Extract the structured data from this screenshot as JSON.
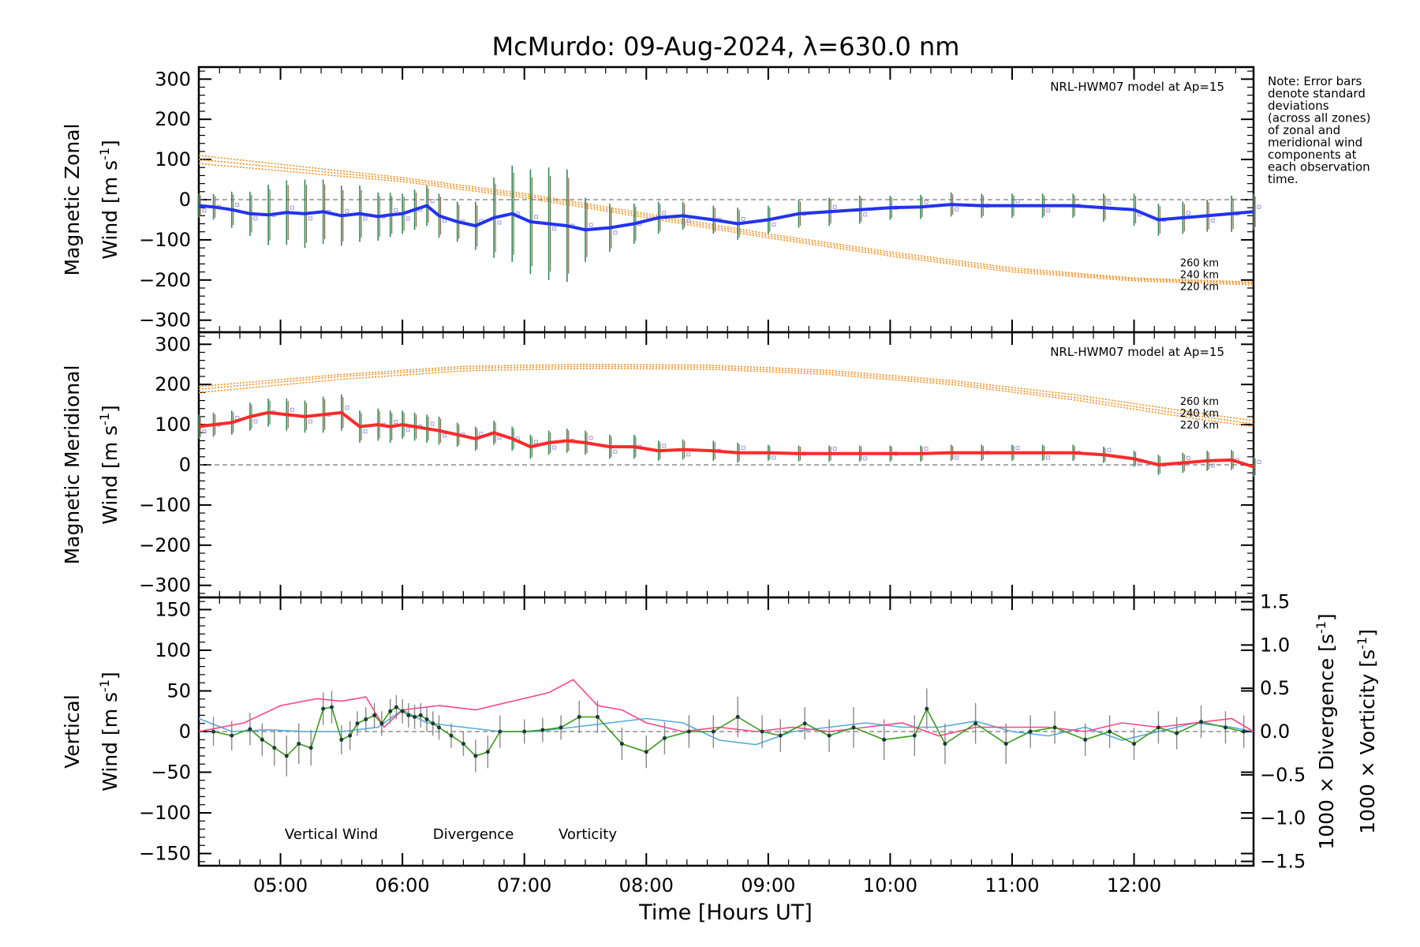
{
  "title": "McMurdo: 09-Aug-2024, λ=630.0 nm",
  "note": [
    "Note: Error bars",
    "denote standard",
    "deviations",
    "(across all zones)",
    "of zonal and",
    "meridional wind",
    "components at",
    "each observation",
    "time."
  ],
  "xlabel": "Time [Hours UT]",
  "x_ticks": [
    "05:00",
    "06:00",
    "07:00",
    "08:00",
    "09:00",
    "10:00",
    "11:00",
    "12:00"
  ],
  "x_range_hours": [
    4.33,
    12.98
  ],
  "colors": {
    "zonal": "#2233ee",
    "meridional": "#ff2a2a",
    "model": "#ff8c1a",
    "vertical": "#3a9a1a",
    "divergence": "#55aadd",
    "vorticity": "#ff4488",
    "errorbar_green": "#2e8b57",
    "errorbar_brown": "#8b6a4a",
    "zone_points": "#9999ee"
  },
  "chart_data": [
    {
      "type": "line",
      "panel": "zonal",
      "ylabel_line1": "Magnetic Zonal",
      "ylabel_line2_prefix": "Wind [m s",
      "ylabel_sup": "-1",
      "ylabel_suffix": "]",
      "ylim": [
        -330,
        330
      ],
      "yticks": [
        "−300",
        "−200",
        "−100",
        "0",
        "100",
        "200",
        "300"
      ],
      "ytick_values": [
        -300,
        -200,
        -100,
        0,
        100,
        200,
        300
      ],
      "model_label": "NRL-HWM07 model at Ap=15",
      "model_altitudes": [
        "260 km",
        "240 km",
        "220 km"
      ],
      "series": [
        {
          "name": "zonal wind",
          "x": [
            4.33,
            4.45,
            4.6,
            4.75,
            4.9,
            5.05,
            5.2,
            5.35,
            5.5,
            5.65,
            5.8,
            5.9,
            6.0,
            6.1,
            6.2,
            6.3,
            6.45,
            6.6,
            6.75,
            6.9,
            7.05,
            7.2,
            7.35,
            7.5,
            7.7,
            7.9,
            8.1,
            8.3,
            8.55,
            8.75,
            9.0,
            9.25,
            9.5,
            9.75,
            10.0,
            10.25,
            10.5,
            10.75,
            11.0,
            11.25,
            11.5,
            11.75,
            12.0,
            12.2,
            12.4,
            12.6,
            12.8,
            12.98
          ],
          "values": [
            -15,
            -18,
            -25,
            -35,
            -38,
            -32,
            -35,
            -30,
            -40,
            -35,
            -42,
            -38,
            -35,
            -25,
            -15,
            -40,
            -55,
            -65,
            -45,
            -35,
            -55,
            -60,
            -65,
            -75,
            -70,
            -60,
            -45,
            -40,
            -50,
            -60,
            -50,
            -35,
            -30,
            -25,
            -20,
            -18,
            -12,
            -15,
            -15,
            -15,
            -15,
            -20,
            -25,
            -50,
            -45,
            -40,
            -35,
            -30
          ],
          "errors": [
            30,
            32,
            45,
            55,
            75,
            80,
            85,
            80,
            75,
            70,
            60,
            55,
            50,
            50,
            50,
            55,
            50,
            60,
            100,
            120,
            130,
            140,
            140,
            80,
            60,
            50,
            40,
            35,
            35,
            40,
            35,
            35,
            35,
            35,
            30,
            30,
            30,
            30,
            30,
            30,
            30,
            35,
            40,
            40,
            40,
            40,
            45,
            45
          ]
        }
      ],
      "model_curves": [
        {
          "altitude": "260 km",
          "x": [
            4.33,
            6,
            7,
            8,
            9,
            10,
            11,
            12,
            12.98
          ],
          "values": [
            110,
            55,
            15,
            -35,
            -85,
            -130,
            -170,
            -195,
            -205
          ]
        },
        {
          "altitude": "240 km",
          "x": [
            4.33,
            6,
            7,
            8,
            9,
            10,
            11,
            12,
            12.98
          ],
          "values": [
            100,
            50,
            10,
            -40,
            -90,
            -135,
            -175,
            -198,
            -208
          ]
        },
        {
          "altitude": "220 km",
          "x": [
            4.33,
            6,
            7,
            8,
            9,
            10,
            11,
            12,
            12.98
          ],
          "values": [
            90,
            45,
            5,
            -45,
            -95,
            -140,
            -180,
            -202,
            -212
          ]
        }
      ]
    },
    {
      "type": "line",
      "panel": "meridional",
      "ylabel_line1": "Magnetic Meridional",
      "ylabel_line2_prefix": "Wind [m s",
      "ylabel_sup": "-1",
      "ylabel_suffix": "]",
      "ylim": [
        -330,
        330
      ],
      "yticks": [
        "−300",
        "−200",
        "−100",
        "0",
        "100",
        "200",
        "300"
      ],
      "ytick_values": [
        -300,
        -200,
        -100,
        0,
        100,
        200,
        300
      ],
      "model_label": "NRL-HWM07 model at Ap=15",
      "model_altitudes": [
        "260 km",
        "240 km",
        "220 km"
      ],
      "series": [
        {
          "name": "meridional wind",
          "x": [
            4.33,
            4.45,
            4.6,
            4.75,
            4.9,
            5.05,
            5.2,
            5.35,
            5.5,
            5.65,
            5.8,
            5.9,
            6.0,
            6.1,
            6.2,
            6.3,
            6.45,
            6.6,
            6.75,
            6.9,
            7.05,
            7.2,
            7.35,
            7.5,
            7.7,
            7.9,
            8.1,
            8.3,
            8.55,
            8.75,
            9.0,
            9.25,
            9.5,
            9.75,
            10.0,
            10.25,
            10.5,
            10.75,
            11.0,
            11.25,
            11.5,
            11.75,
            12.0,
            12.2,
            12.4,
            12.6,
            12.8,
            12.98
          ],
          "values": [
            95,
            100,
            105,
            120,
            130,
            125,
            120,
            125,
            130,
            95,
            100,
            95,
            100,
            95,
            90,
            85,
            75,
            65,
            80,
            65,
            45,
            55,
            60,
            55,
            45,
            45,
            35,
            38,
            35,
            30,
            30,
            28,
            28,
            28,
            28,
            28,
            30,
            30,
            30,
            30,
            30,
            25,
            15,
            0,
            5,
            10,
            12,
            -5
          ],
          "errors": [
            30,
            30,
            30,
            35,
            35,
            40,
            40,
            45,
            45,
            40,
            40,
            40,
            35,
            35,
            35,
            35,
            30,
            30,
            30,
            30,
            30,
            30,
            30,
            30,
            30,
            30,
            25,
            25,
            25,
            25,
            20,
            20,
            20,
            20,
            20,
            20,
            20,
            20,
            20,
            20,
            20,
            20,
            20,
            25,
            25,
            25,
            25,
            25
          ]
        }
      ],
      "model_curves": [
        {
          "altitude": "260 km",
          "x": [
            4.33,
            5.5,
            6.5,
            7.5,
            8.5,
            9.5,
            10.5,
            11.5,
            12.5,
            12.98
          ],
          "values": [
            195,
            225,
            245,
            250,
            248,
            235,
            210,
            175,
            130,
            110
          ]
        },
        {
          "altitude": "240 km",
          "x": [
            4.33,
            5.5,
            6.5,
            7.5,
            8.5,
            9.5,
            10.5,
            11.5,
            12.5,
            12.98
          ],
          "values": [
            188,
            220,
            240,
            245,
            243,
            230,
            205,
            168,
            122,
            102
          ]
        },
        {
          "altitude": "220 km",
          "x": [
            4.33,
            5.5,
            6.5,
            7.5,
            8.5,
            9.5,
            10.5,
            11.5,
            12.5,
            12.98
          ],
          "values": [
            180,
            213,
            234,
            240,
            238,
            225,
            200,
            162,
            115,
            95
          ]
        }
      ]
    },
    {
      "type": "line",
      "panel": "vertical",
      "ylabel_line1": "Vertical",
      "ylabel_line2_prefix": "Wind [m s",
      "ylabel_sup": "-1",
      "ylabel_suffix": "]",
      "ylim": [
        -165,
        165
      ],
      "yticks": [
        "−150",
        "−100",
        "−50",
        "0",
        "50",
        "100",
        "150"
      ],
      "ytick_values": [
        -150,
        -100,
        -50,
        0,
        50,
        100,
        150
      ],
      "y2lim": [
        -1.55,
        1.55
      ],
      "y2ticks": [
        "−1.5",
        "−1.0",
        "−0.5",
        "0.0",
        "0.5",
        "1.0",
        "1.5"
      ],
      "y2tick_values": [
        -1.5,
        -1.0,
        -0.5,
        0.0,
        0.5,
        1.0,
        1.5
      ],
      "y2label_div": "1000 × Divergence [s",
      "y2label_vor": "1000 × Vorticity [s",
      "legend": [
        "Vertical Wind",
        "Divergence",
        "Vorticity"
      ],
      "series": [
        {
          "name": "Vertical Wind",
          "x": [
            4.45,
            4.6,
            4.75,
            4.85,
            4.95,
            5.05,
            5.15,
            5.25,
            5.35,
            5.42,
            5.5,
            5.57,
            5.63,
            5.7,
            5.77,
            5.83,
            5.9,
            5.95,
            6.0,
            6.05,
            6.1,
            6.15,
            6.2,
            6.25,
            6.3,
            6.4,
            6.5,
            6.6,
            6.7,
            6.8,
            7.0,
            7.15,
            7.3,
            7.45,
            7.6,
            7.8,
            8.0,
            8.15,
            8.35,
            8.55,
            8.75,
            8.95,
            9.1,
            9.3,
            9.5,
            9.7,
            9.95,
            10.2,
            10.3,
            10.45,
            10.7,
            10.95,
            11.15,
            11.35,
            11.6,
            11.8,
            12.0,
            12.2,
            12.35,
            12.55,
            12.75,
            12.9
          ],
          "values": [
            0,
            -5,
            3,
            -10,
            -20,
            -30,
            -15,
            -20,
            28,
            30,
            -10,
            -5,
            10,
            15,
            20,
            10,
            25,
            30,
            25,
            20,
            18,
            20,
            15,
            10,
            5,
            -5,
            -15,
            -30,
            -25,
            0,
            0,
            2,
            5,
            18,
            18,
            -15,
            -25,
            -8,
            0,
            0,
            18,
            0,
            -5,
            10,
            -5,
            5,
            -10,
            -5,
            28,
            -15,
            10,
            -15,
            0,
            5,
            -10,
            0,
            -15,
            5,
            -2,
            12,
            5,
            0
          ],
          "errors": [
            18,
            18,
            20,
            20,
            22,
            25,
            25,
            22,
            20,
            20,
            18,
            18,
            15,
            15,
            15,
            15,
            15,
            15,
            15,
            15,
            15,
            15,
            15,
            15,
            15,
            15,
            15,
            20,
            20,
            20,
            15,
            15,
            15,
            20,
            20,
            20,
            20,
            20,
            20,
            20,
            25,
            20,
            20,
            20,
            20,
            25,
            25,
            25,
            25,
            25,
            25,
            25,
            20,
            20,
            20,
            20,
            20,
            20,
            20,
            20,
            20,
            20
          ]
        },
        {
          "name": "Divergence",
          "axis": "right",
          "x": [
            4.33,
            4.6,
            4.9,
            5.2,
            5.5,
            5.8,
            6.0,
            6.2,
            6.5,
            6.8,
            7.1,
            7.4,
            7.7,
            8.0,
            8.3,
            8.6,
            8.9,
            9.2,
            9.5,
            9.8,
            10.1,
            10.4,
            10.7,
            11.0,
            11.3,
            11.6,
            11.9,
            12.2,
            12.5,
            12.8,
            12.98
          ],
          "values": [
            0.15,
            0.0,
            0.02,
            0.0,
            0.0,
            0.05,
            0.25,
            0.1,
            0.05,
            0.0,
            0.0,
            0.05,
            0.1,
            0.15,
            0.1,
            -0.1,
            -0.15,
            0.0,
            0.05,
            0.1,
            0.05,
            0.05,
            0.12,
            0.0,
            -0.05,
            0.05,
            -0.1,
            0.0,
            0.1,
            0.05,
            0.0
          ]
        },
        {
          "name": "Vorticity",
          "axis": "right",
          "x": [
            4.33,
            4.7,
            5.0,
            5.3,
            5.5,
            5.7,
            5.85,
            6.0,
            6.3,
            6.6,
            6.9,
            7.2,
            7.4,
            7.6,
            7.8,
            8.0,
            8.3,
            8.6,
            8.9,
            9.2,
            9.5,
            9.8,
            10.1,
            10.4,
            10.7,
            11.0,
            11.3,
            11.6,
            11.9,
            12.2,
            12.5,
            12.8,
            12.98
          ],
          "values": [
            0.0,
            0.1,
            0.3,
            0.38,
            0.35,
            0.4,
            0.05,
            0.25,
            0.3,
            0.25,
            0.35,
            0.45,
            0.6,
            0.3,
            0.25,
            0.1,
            0.0,
            0.05,
            0.0,
            0.05,
            0.0,
            0.05,
            0.1,
            -0.05,
            0.05,
            0.05,
            0.05,
            0.0,
            0.1,
            0.05,
            0.1,
            0.15,
            0.0
          ]
        }
      ]
    }
  ]
}
